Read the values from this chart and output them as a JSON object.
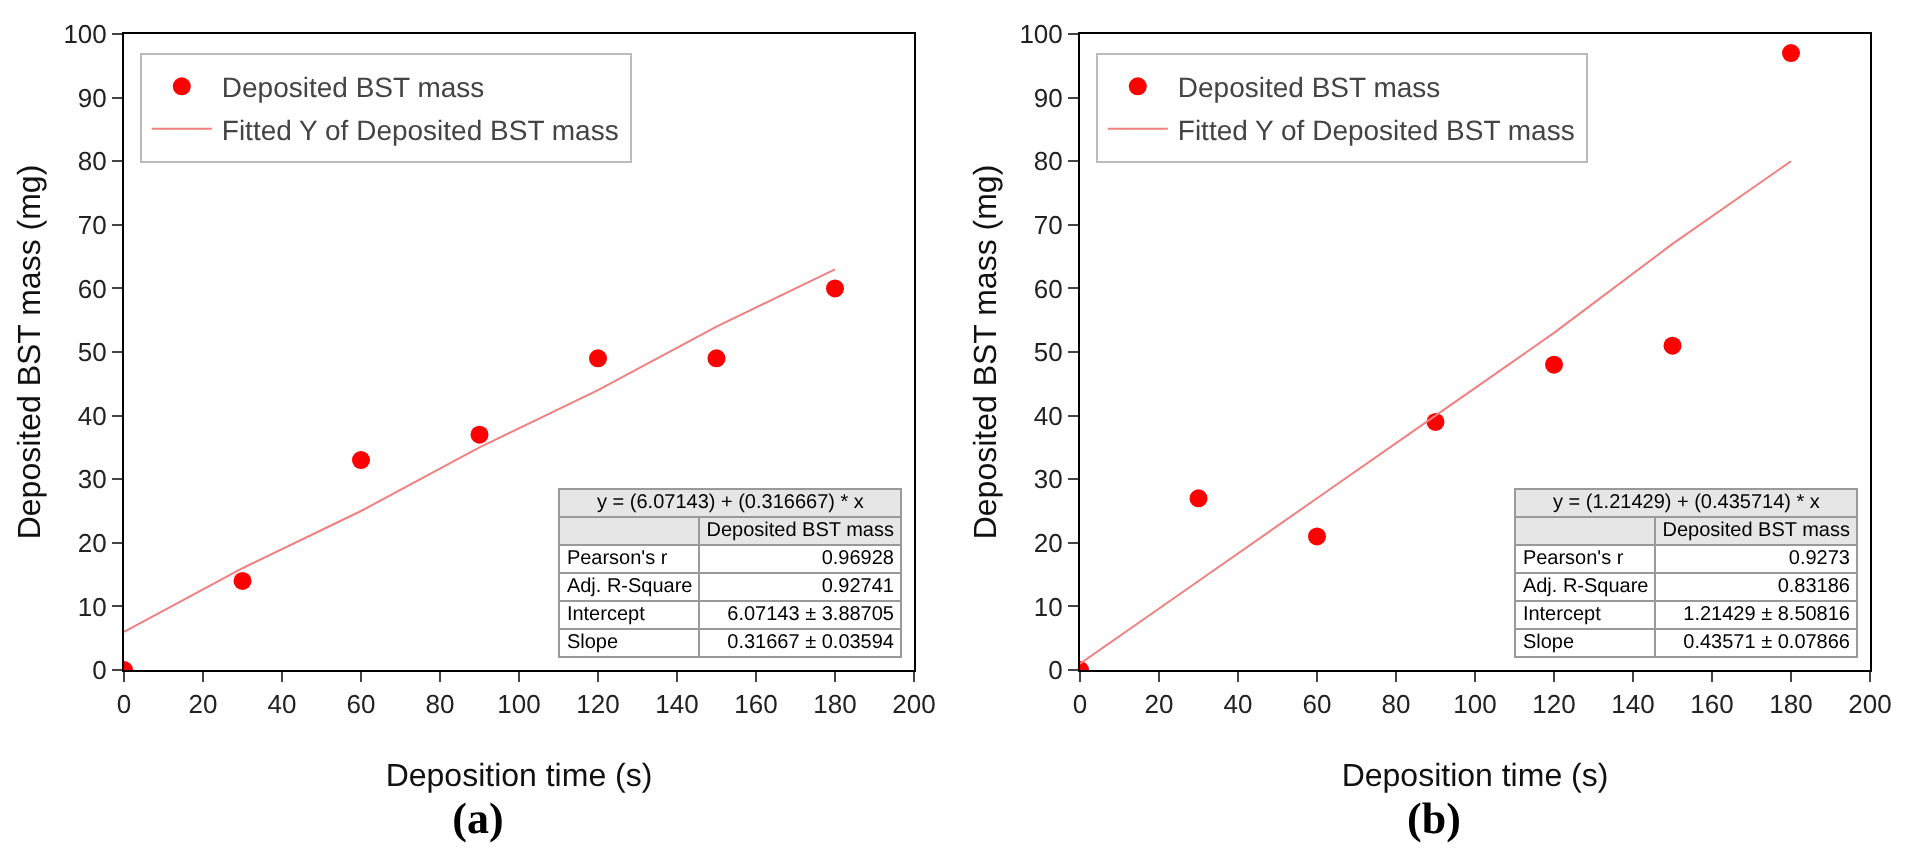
{
  "chart_data": [
    {
      "type": "scatter",
      "title": "(a)",
      "xlabel": "Deposition time (s)",
      "ylabel": "Deposited BST mass (mg)",
      "x": [
        0,
        30,
        60,
        90,
        120,
        150,
        180
      ],
      "xlim": [
        0,
        200
      ],
      "xticks": [
        0,
        20,
        40,
        60,
        80,
        100,
        120,
        140,
        160,
        180,
        200
      ],
      "ylim": [
        0,
        100
      ],
      "yticks": [
        0,
        10,
        20,
        30,
        40,
        50,
        60,
        70,
        80,
        90,
        100
      ],
      "grid": false,
      "legend": "top left",
      "series": [
        {
          "name": "Deposited BST mass",
          "color": "#ff0000",
          "marker": "circle",
          "values": [
            0,
            14,
            33,
            37,
            49,
            49,
            60
          ]
        },
        {
          "type": "line",
          "name": "Fitted Y of Deposited BST mass",
          "color": "#f08080",
          "marker": "none",
          "values": [
            6,
            16,
            25,
            35,
            44,
            54,
            63
          ],
          "line_style": "solid"
        }
      ],
      "annotations": [
        "y = (6.07143) + (0.316667) * x",
        "Deposited BST mass",
        "Pearson's r",
        "0.96928",
        "Adj. R-Square",
        "0.92741",
        "Intercept",
        "6.07143 ± 3.88705",
        "Slope",
        "0.31667 ± 0.03594"
      ]
    },
    {
      "type": "scatter",
      "title": "(b)",
      "xlabel": "Deposition time (s)",
      "ylabel": "Deposited BST mass (mg)",
      "x": [
        0,
        30,
        60,
        90,
        120,
        150,
        180
      ],
      "xlim": [
        0,
        200
      ],
      "xticks": [
        0,
        20,
        40,
        60,
        80,
        100,
        120,
        140,
        160,
        180,
        200
      ],
      "ylim": [
        0,
        100
      ],
      "yticks": [
        0,
        10,
        20,
        30,
        40,
        50,
        60,
        70,
        80,
        90,
        100
      ],
      "grid": false,
      "legend": "top left",
      "series": [
        {
          "name": "Deposited BST mass",
          "color": "#ff0000",
          "marker": "circle",
          "values": [
            0,
            27,
            21,
            39,
            48,
            51,
            97
          ]
        },
        {
          "type": "line",
          "name": "Fitted Y of Deposited BST mass",
          "color": "#f08080",
          "marker": "none",
          "values": [
            1,
            14,
            27,
            40,
            53,
            67,
            80
          ],
          "line_style": "solid"
        }
      ],
      "annotations": [
        "y = (1.21429) + (0.435714) * x",
        "Deposited BST mass",
        "Pearson's r",
        "0.9273",
        "Adj. R-Square",
        "0.83186",
        "Intercept",
        "1.21429 ± 8.50816",
        "Slope",
        "0.43571 ± 0.07866"
      ]
    }
  ]
}
